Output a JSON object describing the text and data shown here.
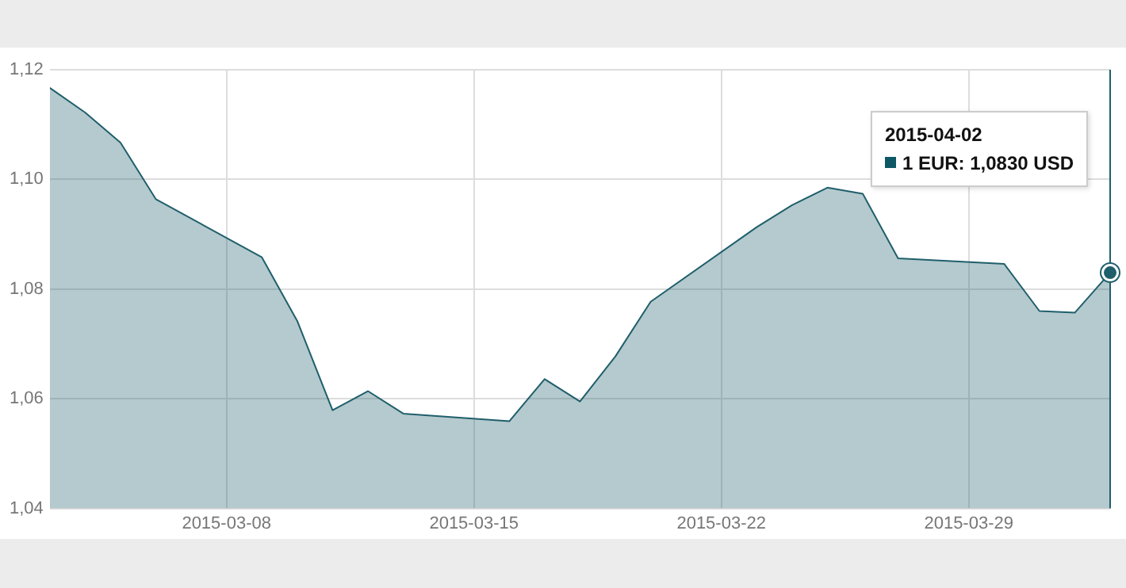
{
  "chart_data": {
    "type": "area",
    "x": [
      "2015-03-03",
      "2015-03-04",
      "2015-03-05",
      "2015-03-06",
      "2015-03-09",
      "2015-03-10",
      "2015-03-11",
      "2015-03-12",
      "2015-03-13",
      "2015-03-16",
      "2015-03-17",
      "2015-03-18",
      "2015-03-19",
      "2015-03-20",
      "2015-03-23",
      "2015-03-24",
      "2015-03-25",
      "2015-03-26",
      "2015-03-27",
      "2015-03-30",
      "2015-03-31",
      "2015-04-01",
      "2015-04-02"
    ],
    "series": [
      {
        "color": "#1f5f6b",
        "values": [
          1.1167,
          1.1122,
          1.1067,
          1.0964,
          1.0858,
          1.0742,
          1.0579,
          1.0614,
          1.0573,
          1.0559,
          1.0636,
          1.0595,
          1.0677,
          1.0777,
          1.0913,
          1.0953,
          1.0985,
          1.0974,
          1.0856,
          1.0846,
          1.076,
          1.0757,
          1.083
        ]
      }
    ],
    "xlim": [
      "2015-03-03",
      "2015-04-02"
    ],
    "xticks": [
      "2015-03-08",
      "2015-03-15",
      "2015-03-22",
      "2015-03-29"
    ],
    "ylim": [
      1.04,
      1.12
    ],
    "yticks": [
      {
        "value": 1.04,
        "label": "1,04"
      },
      {
        "value": 1.06,
        "label": "1,06"
      },
      {
        "value": 1.08,
        "label": "1,08"
      },
      {
        "value": 1.1,
        "label": "1,10"
      },
      {
        "value": 1.12,
        "label": "1,12"
      }
    ],
    "grid": true,
    "legend": false,
    "marker": "none",
    "annotations": [
      "2015-04-02\n1 EUR: 1,0830 USD"
    ]
  }
}
